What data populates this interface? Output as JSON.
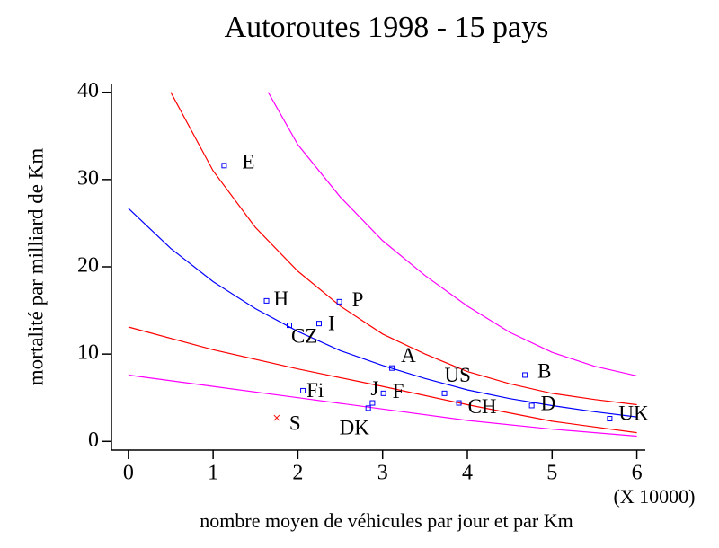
{
  "chart_data": {
    "type": "scatter",
    "title": "Autoroutes 1998 - 15 pays",
    "x_label": "nombre moyen de véhicules par jour et par Km",
    "y_label": "mortalité par milliard de Km",
    "x_unit_note": "(X 10000)",
    "xlim": [
      -0.2,
      6.1
    ],
    "ylim": [
      -1,
      41
    ],
    "xticks": [
      0,
      1,
      2,
      3,
      4,
      5,
      6
    ],
    "yticks": [
      0,
      10,
      20,
      30,
      40
    ],
    "series": [
      {
        "color": "#0000ff",
        "marker": "square",
        "labels": [
          "E",
          "H",
          "P",
          "CZ",
          "I",
          "A",
          "Fi",
          "J",
          "DK",
          "F",
          "US",
          "CH",
          "B",
          "D",
          "UK"
        ],
        "x": [
          1.13,
          1.63,
          2.49,
          1.9,
          2.25,
          3.11,
          2.06,
          2.88,
          2.83,
          3.01,
          3.73,
          3.9,
          4.68,
          4.76,
          5.68
        ],
        "values": [
          31.6,
          16.1,
          16.0,
          13.3,
          13.5,
          8.4,
          5.8,
          4.4,
          3.8,
          5.5,
          5.5,
          4.4,
          7.6,
          4.1,
          2.6
        ]
      },
      {
        "color": "#ff0000",
        "marker": "x",
        "labels": [
          "S"
        ],
        "x": [
          1.75
        ],
        "values": [
          2.7
        ]
      }
    ],
    "lines": [
      {
        "color": "#0000ff",
        "x": [
          0,
          0.5,
          1,
          1.5,
          2,
          2.5,
          3,
          3.5,
          4,
          4.5,
          5,
          5.5,
          6
        ],
        "values": [
          26.7,
          22.1,
          18.3,
          15.2,
          12.6,
          10.4,
          8.7,
          7.2,
          5.9,
          4.9,
          4.1,
          3.4,
          2.8
        ]
      },
      {
        "color": "#ff0000",
        "x": [
          0.5,
          1,
          1.5,
          2,
          2.5,
          3,
          3.5,
          4,
          4.5,
          5,
          5.5,
          6
        ],
        "values": [
          40,
          31,
          24.5,
          19.5,
          15.5,
          12.3,
          10,
          8,
          6.6,
          5.5,
          4.8,
          4.2
        ]
      },
      {
        "color": "#ff0000",
        "x": [
          0,
          1,
          2,
          3,
          4,
          5,
          6
        ],
        "values": [
          13.1,
          10.5,
          8.3,
          6.3,
          4.2,
          2.3,
          1.0
        ]
      },
      {
        "color": "#ff00ff",
        "x": [
          1.65,
          2,
          2.5,
          3,
          3.5,
          4,
          4.5,
          5,
          5.5,
          6
        ],
        "values": [
          40,
          34,
          28,
          23,
          19,
          15.5,
          12.5,
          10.2,
          8.6,
          7.5
        ]
      },
      {
        "color": "#ff00ff",
        "x": [
          0,
          1,
          2,
          3,
          4,
          5,
          6
        ],
        "values": [
          7.6,
          6.3,
          5.0,
          3.7,
          2.4,
          1.4,
          0.6
        ]
      }
    ]
  }
}
